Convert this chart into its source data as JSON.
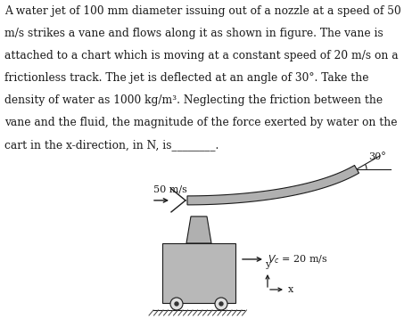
{
  "background_color": "#ffffff",
  "text_block": "A water jet of 100 mm diameter issuing out of a nozzle at a speed of 50\nm/s strikes a vane and flows along it as shown in figure. The vane is\nattached to a chart which is moving at a constant speed of 20 m/s on a\nfrictionless track. The jet is deflected at an angle of 30°. Take the\ndensity of water as 1000 kg/m³. Neglecting the friction between the\nvane and the fluid, the magnitude of the force exerted by water on the\ncart in the x-direction, in N, is________.",
  "text_fontsize": 8.8,
  "text_color": "#1a1a1a",
  "diagram_label_50ms": "50 m/s",
  "diagram_label_vc": "$\\mathit{V}_c$ = 20 m/s",
  "diagram_label_30deg": "30°",
  "diagram_label_y": "y",
  "diagram_label_x": "x",
  "gray_vane": "#b0b0b0",
  "gray_cart": "#b8b8b8",
  "gray_stem": "#b0b0b0",
  "gray_wheel_fill": "#e0e0e0",
  "hatch_color": "#444444",
  "line_color": "#1a1a1a"
}
